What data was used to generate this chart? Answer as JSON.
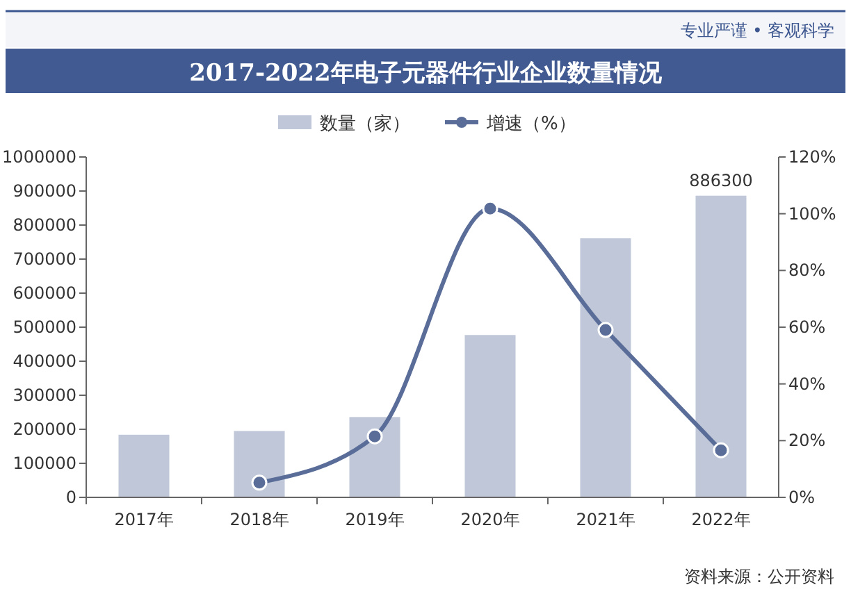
{
  "chart_data": {
    "type": "bar",
    "title": "2017-2022年电子元器件行业企业数量情况",
    "annotations": [
      "专业严谨 • 客观科学",
      "资料来源：公开资料"
    ],
    "categories": [
      "2017年",
      "2018年",
      "2019年",
      "2020年",
      "2021年",
      "2022年"
    ],
    "series": [
      {
        "name": "数量（家）",
        "color": "#bfc7d8",
        "values": [
          184000,
          195000,
          236000,
          477000,
          761000,
          886300
        ],
        "value_labels": [
          null,
          null,
          null,
          null,
          null,
          "886300"
        ]
      },
      {
        "name": "增速（%）",
        "type": "line",
        "axis": "y2",
        "color": "#5a6d99",
        "marker": "circle",
        "values": [
          null,
          5.2,
          21.5,
          101.8,
          59,
          16.6
        ]
      }
    ],
    "ylim": [
      0,
      1000000
    ],
    "yticks": [
      0,
      100000,
      200000,
      300000,
      400000,
      500000,
      600000,
      700000,
      800000,
      900000,
      1000000
    ],
    "y2lim": [
      0,
      120
    ],
    "y2ticks": [
      {
        "value": 0,
        "label": "0%"
      },
      {
        "value": 20,
        "label": "20%"
      },
      {
        "value": 40,
        "label": "40%"
      },
      {
        "value": 60,
        "label": "60%"
      },
      {
        "value": 80,
        "label": "80%"
      },
      {
        "value": 100,
        "label": "100%"
      },
      {
        "value": 120,
        "label": "120%"
      }
    ],
    "legend": "top"
  }
}
